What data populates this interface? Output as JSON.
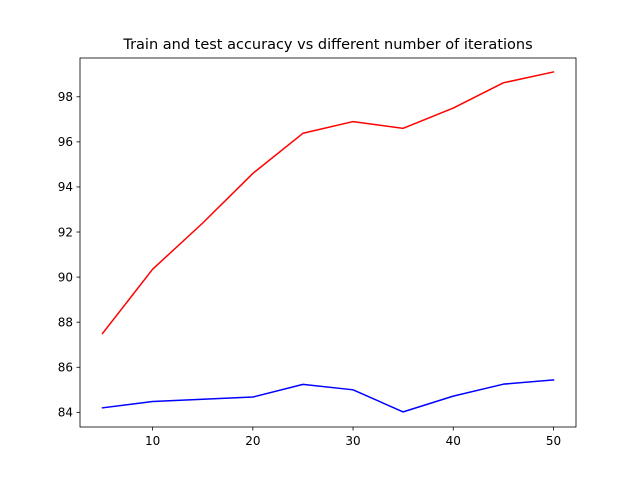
{
  "chart_data": {
    "type": "line",
    "title": "Train and test accuracy vs different number of iterations",
    "xlabel": "",
    "ylabel": "",
    "x": [
      5,
      10,
      15,
      20,
      25,
      30,
      35,
      40,
      45,
      50
    ],
    "series": [
      {
        "color": "#ff0000",
        "values": [
          87.5,
          90.35,
          92.4,
          94.6,
          96.38,
          96.9,
          96.6,
          97.5,
          98.62,
          99.1
        ]
      },
      {
        "color": "#0000ff",
        "values": [
          84.2,
          84.48,
          84.58,
          84.68,
          85.24,
          85.0,
          84.02,
          84.72,
          85.25,
          85.44
        ]
      }
    ],
    "xlim": [
      2.75,
      52.25
    ],
    "ylim": [
      83.35,
      99.72
    ],
    "xticks": [
      10,
      20,
      30,
      40,
      50
    ],
    "yticks": [
      84,
      86,
      88,
      90,
      92,
      94,
      96,
      98
    ],
    "grid": false,
    "legend": "none"
  }
}
